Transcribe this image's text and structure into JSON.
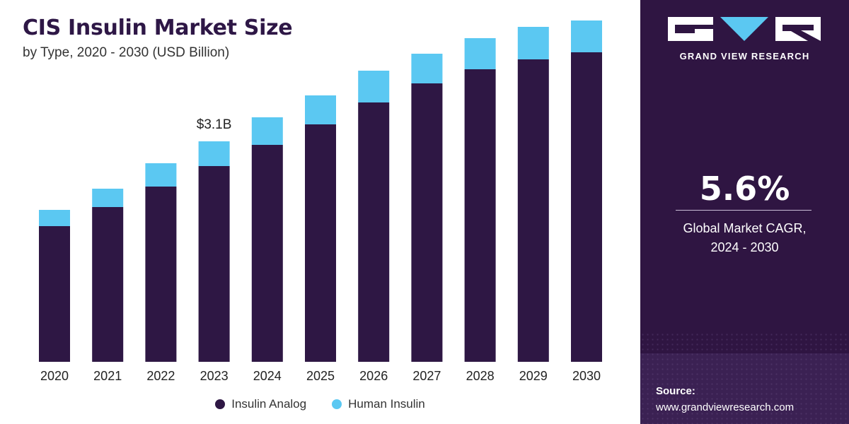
{
  "header": {
    "title": "CIS Insulin Market Size",
    "subtitle": "by Type, 2020 - 2030 (USD Billion)"
  },
  "colors": {
    "insulin_analog": "#2e1744",
    "human_insulin": "#5bc8f2",
    "panel_bg": "#2f1542"
  },
  "chart_data": {
    "type": "bar",
    "stacked": true,
    "categories": [
      "2020",
      "2021",
      "2022",
      "2023",
      "2024",
      "2025",
      "2026",
      "2027",
      "2028",
      "2029",
      "2030"
    ],
    "series": [
      {
        "name": "Insulin Analog",
        "values": [
          1.92,
          2.19,
          2.48,
          2.77,
          3.07,
          3.36,
          3.67,
          3.94,
          4.14,
          4.28,
          4.38
        ]
      },
      {
        "name": "Human Insulin",
        "values": [
          0.23,
          0.26,
          0.33,
          0.35,
          0.39,
          0.41,
          0.45,
          0.42,
          0.44,
          0.46,
          0.45
        ]
      }
    ],
    "annotations": [
      {
        "category": "2023",
        "label": "$3.1B"
      }
    ],
    "ylim": [
      0,
      5
    ],
    "legend": "bottom",
    "grid": false
  },
  "sidebar": {
    "brand": "GRAND VIEW RESEARCH",
    "cagr_value": "5.6%",
    "cagr_label_line1": "Global Market CAGR,",
    "cagr_label_line2": "2024 - 2030",
    "source_label": "Source:",
    "source_url": "www.grandviewresearch.com"
  }
}
